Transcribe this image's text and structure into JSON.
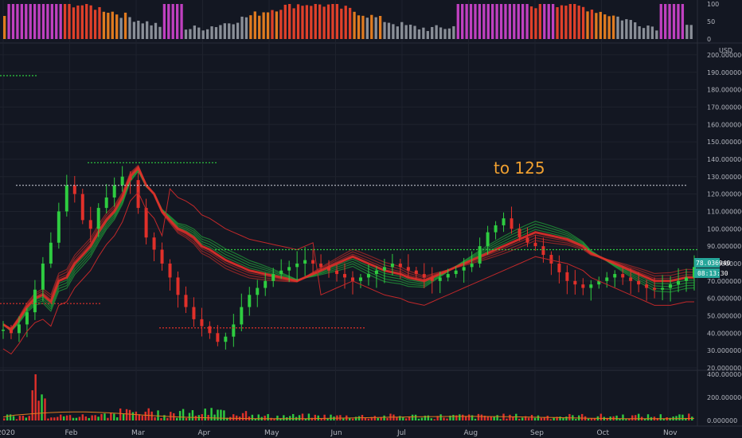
{
  "chart_data": [
    {
      "type": "bar",
      "panel": "oscillator",
      "ylim": [
        0,
        100
      ],
      "yticks": [
        "100",
        "50",
        "0"
      ],
      "colors": {
        "extreme": "#c040c0",
        "high": "#e0402a",
        "mid": "#e07b20",
        "low": "#8a8f98"
      }
    },
    {
      "type": "line",
      "panel": "price",
      "currency": "USD",
      "ylim": [
        20,
        205
      ],
      "yticks": [
        "200.000000",
        "190.000000",
        "180.000000",
        "170.000000",
        "160.000000",
        "150.000000",
        "140.000000",
        "130.000000",
        "120.000000",
        "110.000000",
        "100.000000",
        "90.000000",
        "80.000000",
        "70.000000",
        "60.000000",
        "50.000000",
        "40.000000",
        "30.000000",
        "20.000000"
      ],
      "months": [
        "2020",
        "Feb",
        "Mar",
        "Apr",
        "May",
        "Jun",
        "Jul",
        "Aug",
        "Sep",
        "Oct",
        "Nov"
      ],
      "last_price": "78.036940",
      "countdown": "08:13:30",
      "annotation": "to 125",
      "target_level": 125,
      "series": [
        {
          "values": [
            45,
            42,
            48,
            55,
            60,
            62,
            58,
            70,
            72,
            80,
            85,
            90,
            98,
            105,
            110,
            118,
            130,
            135,
            125,
            120,
            110,
            105,
            100,
            98,
            95,
            90,
            88,
            85,
            82,
            80,
            78,
            76,
            75,
            74,
            73,
            72,
            71,
            70,
            72,
            74,
            76,
            78,
            80,
            82,
            84,
            82,
            80,
            78,
            76,
            75,
            74,
            72,
            71,
            70,
            72,
            74,
            76,
            78,
            80,
            82,
            84,
            86,
            88,
            90,
            92,
            94,
            96,
            98,
            97,
            96,
            95,
            94,
            92,
            90,
            86,
            84,
            82,
            80,
            78,
            76,
            74,
            72,
            70,
            70,
            70,
            71,
            72,
            72
          ]
        },
        {
          "values": [
            42,
            40,
            45,
            52,
            65,
            80,
            92,
            110,
            125,
            120,
            105,
            100,
            112,
            118,
            125,
            130,
            128,
            112,
            95,
            88,
            80,
            72,
            62,
            55,
            48,
            44,
            40,
            35,
            38,
            45,
            55,
            62,
            66,
            70,
            74,
            76,
            78,
            80,
            82,
            80,
            78,
            76,
            74,
            72,
            70,
            72,
            74,
            76,
            78,
            80,
            78,
            76,
            74,
            72,
            70,
            72,
            74,
            76,
            78,
            80,
            90,
            98,
            102,
            106,
            100,
            95,
            92,
            90,
            85,
            80,
            75,
            70,
            68,
            66,
            68,
            70,
            72,
            74,
            72,
            70,
            68,
            66,
            65,
            66,
            68,
            70,
            72,
            78
          ]
        }
      ],
      "levels": [
        {
          "value": 138,
          "color": "#2ecc40"
        },
        {
          "value": 88,
          "color": "#2ecc40"
        },
        {
          "value": 57,
          "color": "#e0302a"
        },
        {
          "value": 43,
          "color": "#e0302a"
        }
      ]
    },
    {
      "type": "bar",
      "panel": "volume",
      "ylim": [
        0,
        400
      ],
      "yticks": [
        "400.000000",
        "200.000000",
        "0.000000"
      ],
      "colors": {
        "up": "#2ecc40",
        "down": "#e0302a"
      }
    }
  ]
}
